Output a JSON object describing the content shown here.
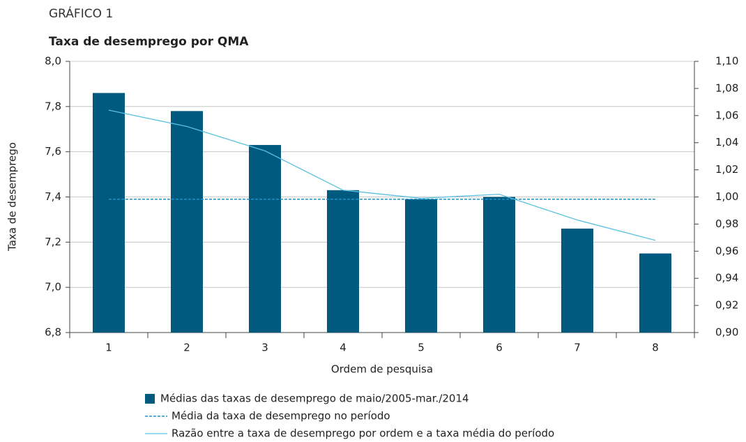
{
  "chart_data": {
    "type": "bar",
    "title": "GRÁFICO 1",
    "subtitle": "Taxa de desemprego por QMA",
    "x_label": "Ordem de pesquisa",
    "y_label": "Taxa de desemprego",
    "categories": [
      "1",
      "2",
      "3",
      "4",
      "5",
      "6",
      "7",
      "8"
    ],
    "series": [
      {
        "name": "Médias das taxas de desemprego de maio/2005-mar./2014",
        "type": "bar",
        "color": "#005a80",
        "values": [
          7.86,
          7.78,
          7.63,
          7.43,
          7.39,
          7.4,
          7.26,
          7.15
        ]
      },
      {
        "name": "Média da taxa de desemprego no período",
        "type": "line",
        "dashed": true,
        "color": "#1e90c8",
        "values": [
          7.39,
          7.39,
          7.39,
          7.39,
          7.39,
          7.39,
          7.39,
          7.39
        ]
      },
      {
        "name": "Razão entre a taxa de desemprego por ordem e a taxa média do período",
        "type": "line",
        "axis": "y2",
        "color": "#5bc0e0",
        "values": [
          1.064,
          1.052,
          1.034,
          1.005,
          0.999,
          1.002,
          0.983,
          0.968
        ]
      }
    ],
    "ylim": [
      6.8,
      8.0
    ],
    "yticks": [
      {
        "value": 6.8,
        "label": "6,8"
      },
      {
        "value": 7.0,
        "label": "7,0"
      },
      {
        "value": 7.2,
        "label": "7,2"
      },
      {
        "value": 7.4,
        "label": "7,4"
      },
      {
        "value": 7.6,
        "label": "7,6"
      },
      {
        "value": 7.8,
        "label": "7,8"
      },
      {
        "value": 8.0,
        "label": "8,0"
      }
    ],
    "y2lim": [
      0.9,
      1.1
    ],
    "y2ticks": [
      {
        "value": 0.9,
        "label": "0,90"
      },
      {
        "value": 0.92,
        "label": "0,92"
      },
      {
        "value": 0.94,
        "label": "0,94"
      },
      {
        "value": 0.96,
        "label": "0,96"
      },
      {
        "value": 0.98,
        "label": "0,98"
      },
      {
        "value": 1.0,
        "label": "1,00"
      },
      {
        "value": 1.02,
        "label": "1,02"
      },
      {
        "value": 1.04,
        "label": "1,04"
      },
      {
        "value": 1.06,
        "label": "1,06"
      },
      {
        "value": 1.08,
        "label": "1,08"
      },
      {
        "value": 1.1,
        "label": "1,10"
      }
    ],
    "grid": true
  }
}
